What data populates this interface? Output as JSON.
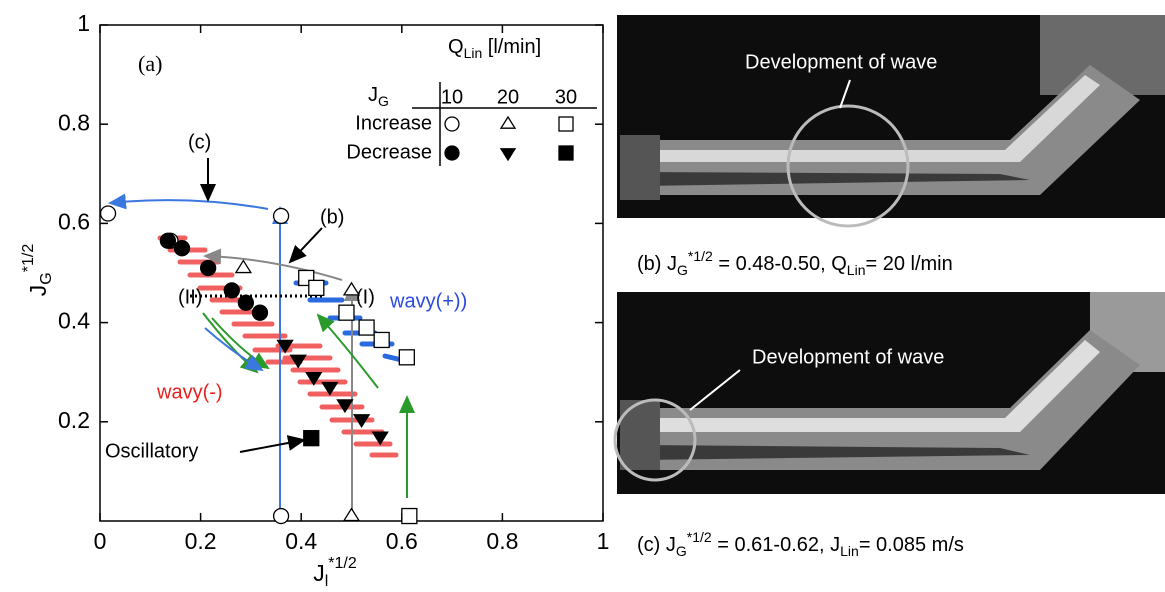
{
  "chart_data": {
    "type": "scatter",
    "x_label": {
      "base": "J",
      "sub": "l",
      "sup": "*1/2"
    },
    "y_label": {
      "base": "J",
      "sub": "G",
      "sup": "*1/2"
    },
    "xlim": [
      0,
      1
    ],
    "ylim": [
      0,
      1
    ],
    "xticks": [
      0,
      0.2,
      0.4,
      0.6,
      0.8,
      1
    ],
    "yticks": [
      0.2,
      0.4,
      0.6,
      0.8,
      1
    ],
    "legend": {
      "title": "Q",
      "title_sub": "Lin",
      "title_unit": " [l/min]",
      "row_header": "J",
      "row_header_sub": "G",
      "columns": [
        "10",
        "20",
        "30"
      ],
      "rows": [
        "Increase",
        "Decrease"
      ]
    },
    "series": [
      {
        "marker": "circle",
        "filled": false,
        "x": [
          0.016,
          0.36,
          0.36,
          0.14
        ],
        "values": [
          0.62,
          0.615,
          0.01,
          0.565
        ]
      },
      {
        "marker": "triangle-up",
        "filled": false,
        "x": [
          0.285,
          0.5,
          0.5,
          0.41
        ],
        "values": [
          0.51,
          0.465,
          0.01,
          0.49
        ]
      },
      {
        "marker": "square",
        "filled": false,
        "x": [
          0.41,
          0.43,
          0.49,
          0.53,
          0.56,
          0.61,
          0.615
        ],
        "values": [
          0.49,
          0.47,
          0.42,
          0.39,
          0.365,
          0.33,
          0.01
        ]
      },
      {
        "marker": "circle",
        "filled": true,
        "x": [
          0.135,
          0.163,
          0.215,
          0.262,
          0.29,
          0.318
        ],
        "values": [
          0.565,
          0.55,
          0.51,
          0.465,
          0.44,
          0.42
        ]
      },
      {
        "marker": "triangle-down",
        "filled": true,
        "x": [
          0.368,
          0.394,
          0.425,
          0.457,
          0.487,
          0.52,
          0.557
        ],
        "values": [
          0.355,
          0.325,
          0.29,
          0.27,
          0.235,
          0.205,
          0.17
        ]
      },
      {
        "marker": "square",
        "filled": true,
        "x": [
          0.42
        ],
        "values": [
          0.167
        ]
      }
    ],
    "annotations": {
      "a": "(a)",
      "b": "(b)",
      "c": "(c)",
      "I": "(I)",
      "II": "(II)",
      "wavy_plus": "wavy(+))",
      "wavy_minus": "wavy(-)",
      "oscillatory": "Oscillatory"
    }
  },
  "photos": [
    {
      "label": "Development of wave",
      "caption": [
        "(b) J",
        "G",
        "*1/2",
        " = 0.48-0.50, Q",
        "Lin",
        "= 20 l/min"
      ]
    },
    {
      "label": "Development of wave",
      "caption": [
        "(c) J",
        "G",
        "*1/2",
        " = 0.61-0.62, J",
        "Lin",
        "= 0.085 m/s"
      ]
    }
  ]
}
